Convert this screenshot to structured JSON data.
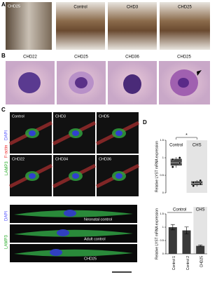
{
  "panels": {
    "a": {
      "letter": "A",
      "labels": [
        "CHD25",
        "Control",
        "CHD3",
        "CHD25"
      ]
    },
    "b": {
      "letter": "B",
      "labels": [
        "CHD22",
        "CHD25",
        "CHD36",
        "CHD25"
      ]
    },
    "c": {
      "letter": "C",
      "grid_labels": [
        "Control",
        "CHD3",
        "CHD5",
        "CHD22",
        "CHD34",
        "CHD36"
      ],
      "channels": [
        "LAMP3",
        "DAPI",
        "F-actin"
      ],
      "strip_labels": [
        "Neonatal control",
        "Adult control",
        "CHD25"
      ],
      "strip_channels": [
        "LAMP3",
        "DAPI"
      ]
    },
    "d": {
      "letter": "D"
    }
  },
  "chart_data": [
    {
      "type": "box",
      "ylabel": "Relative LYST mRNA expression",
      "categories": [
        "Control",
        "CHS"
      ],
      "significance": "*",
      "boxes": [
        {
          "whisker_low": 0.72,
          "q1": 0.78,
          "median": 0.86,
          "q3": 0.97,
          "whisker_high": 1.02,
          "points": [
            0.74,
            0.85,
            0.95,
            1.0
          ],
          "color": "#444"
        },
        {
          "whisker_low": 0.18,
          "q1": 0.22,
          "median": 0.27,
          "q3": 0.33,
          "whisker_high": 0.36,
          "points": [
            0.2,
            0.25,
            0.3,
            0.35
          ],
          "color": "#444"
        }
      ],
      "ylim": [
        0,
        1.5
      ],
      "yticks": [
        0,
        0.5,
        1,
        1.5
      ]
    },
    {
      "type": "bar",
      "ylabel": "Relative LYST mRNA expression",
      "categories": [
        "Control 1",
        "Control 2",
        "CHD25"
      ],
      "groups": [
        "Control",
        "CHS"
      ],
      "values": [
        1.0,
        0.88,
        0.3
      ],
      "errors": [
        0.1,
        0.13,
        0.03
      ],
      "color": "#3a3a3a",
      "ylim": [
        0,
        1.5
      ],
      "yticks": [
        0,
        0.5,
        1,
        1.5
      ]
    }
  ]
}
